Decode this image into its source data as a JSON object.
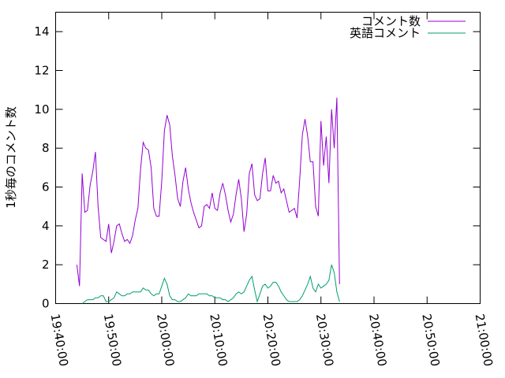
{
  "chart_data": {
    "type": "line",
    "ylabel": "1秒毎のコメント数",
    "xlabel": "",
    "title": "",
    "ylim": [
      0,
      15
    ],
    "y_ticks": [
      0,
      2,
      4,
      6,
      8,
      10,
      12,
      14
    ],
    "x_tick_labels": [
      "19:40:00",
      "19:50:00",
      "20:00:00",
      "20:10:00",
      "20:20:00",
      "20:30:00",
      "20:40:00",
      "20:50:00",
      "21:00:00"
    ],
    "legend_position": "top-right",
    "grid": false,
    "series": [
      {
        "name": "コメント数",
        "color": "#9400d3",
        "points": [
          [
            "19:44:00",
            2.0
          ],
          [
            "19:44:30",
            0.9
          ],
          [
            "19:45:00",
            6.7
          ],
          [
            "19:45:30",
            4.7
          ],
          [
            "19:46:00",
            4.8
          ],
          [
            "19:46:30",
            6.1
          ],
          [
            "19:47:00",
            6.8
          ],
          [
            "19:47:30",
            7.8
          ],
          [
            "19:48:00",
            5.0
          ],
          [
            "19:48:30",
            3.4
          ],
          [
            "19:49:00",
            3.3
          ],
          [
            "19:49:30",
            3.2
          ],
          [
            "19:50:00",
            4.1
          ],
          [
            "19:50:30",
            2.6
          ],
          [
            "19:51:00",
            3.2
          ],
          [
            "19:51:30",
            4.0
          ],
          [
            "19:52:00",
            4.1
          ],
          [
            "19:52:30",
            3.6
          ],
          [
            "19:53:00",
            3.2
          ],
          [
            "19:53:30",
            3.3
          ],
          [
            "19:54:00",
            3.1
          ],
          [
            "19:54:30",
            3.5
          ],
          [
            "19:55:00",
            4.3
          ],
          [
            "19:55:30",
            4.9
          ],
          [
            "19:56:00",
            6.9
          ],
          [
            "19:56:30",
            8.3
          ],
          [
            "19:57:00",
            8.0
          ],
          [
            "19:57:30",
            7.9
          ],
          [
            "19:58:00",
            7.0
          ],
          [
            "19:58:30",
            4.9
          ],
          [
            "19:59:00",
            4.5
          ],
          [
            "19:59:30",
            4.5
          ],
          [
            "20:00:00",
            6.3
          ],
          [
            "20:00:30",
            8.9
          ],
          [
            "20:01:00",
            9.7
          ],
          [
            "20:01:30",
            9.2
          ],
          [
            "20:02:00",
            7.6
          ],
          [
            "20:02:30",
            6.6
          ],
          [
            "20:03:00",
            5.4
          ],
          [
            "20:03:30",
            5.0
          ],
          [
            "20:04:00",
            6.3
          ],
          [
            "20:04:30",
            7.0
          ],
          [
            "20:05:00",
            5.9
          ],
          [
            "20:05:30",
            5.2
          ],
          [
            "20:06:00",
            4.7
          ],
          [
            "20:06:30",
            4.3
          ],
          [
            "20:07:00",
            3.9
          ],
          [
            "20:07:30",
            4.0
          ],
          [
            "20:08:00",
            5.0
          ],
          [
            "20:08:30",
            5.1
          ],
          [
            "20:09:00",
            4.9
          ],
          [
            "20:09:30",
            5.7
          ],
          [
            "20:10:00",
            4.9
          ],
          [
            "20:10:30",
            4.8
          ],
          [
            "20:11:00",
            5.7
          ],
          [
            "20:11:30",
            6.2
          ],
          [
            "20:12:00",
            5.6
          ],
          [
            "20:12:30",
            4.8
          ],
          [
            "20:13:00",
            4.2
          ],
          [
            "20:13:30",
            4.6
          ],
          [
            "20:14:00",
            5.6
          ],
          [
            "20:14:30",
            6.4
          ],
          [
            "20:15:00",
            5.4
          ],
          [
            "20:15:30",
            3.7
          ],
          [
            "20:16:00",
            4.6
          ],
          [
            "20:16:30",
            6.7
          ],
          [
            "20:17:00",
            7.2
          ],
          [
            "20:17:30",
            5.6
          ],
          [
            "20:18:00",
            5.3
          ],
          [
            "20:18:30",
            5.4
          ],
          [
            "20:19:00",
            6.7
          ],
          [
            "20:19:30",
            7.5
          ],
          [
            "20:20:00",
            5.8
          ],
          [
            "20:20:30",
            5.8
          ],
          [
            "20:21:00",
            6.6
          ],
          [
            "20:21:30",
            6.2
          ],
          [
            "20:22:00",
            6.3
          ],
          [
            "20:22:30",
            5.7
          ],
          [
            "20:23:00",
            5.9
          ],
          [
            "20:23:30",
            5.3
          ],
          [
            "20:24:00",
            4.7
          ],
          [
            "20:24:30",
            4.8
          ],
          [
            "20:25:00",
            4.9
          ],
          [
            "20:25:30",
            4.4
          ],
          [
            "20:26:00",
            6.4
          ],
          [
            "20:26:30",
            8.7
          ],
          [
            "20:27:00",
            9.5
          ],
          [
            "20:27:30",
            8.6
          ],
          [
            "20:28:00",
            7.3
          ],
          [
            "20:28:30",
            7.3
          ],
          [
            "20:29:00",
            5.0
          ],
          [
            "20:29:30",
            4.5
          ],
          [
            "20:30:00",
            9.4
          ],
          [
            "20:30:30",
            7.1
          ],
          [
            "20:31:00",
            8.6
          ],
          [
            "20:31:30",
            6.2
          ],
          [
            "20:32:00",
            10.0
          ],
          [
            "20:32:30",
            8.0
          ],
          [
            "20:33:00",
            10.6
          ],
          [
            "20:33:30",
            1.0
          ]
        ]
      },
      {
        "name": "英語コメント",
        "color": "#009e73",
        "points": [
          [
            "19:45:00",
            0.0
          ],
          [
            "19:45:30",
            0.1
          ],
          [
            "19:46:00",
            0.2
          ],
          [
            "19:46:30",
            0.2
          ],
          [
            "19:47:00",
            0.2
          ],
          [
            "19:47:30",
            0.3
          ],
          [
            "19:48:00",
            0.3
          ],
          [
            "19:48:30",
            0.4
          ],
          [
            "19:49:00",
            0.4
          ],
          [
            "19:49:30",
            0.1
          ],
          [
            "19:50:00",
            0.1
          ],
          [
            "19:50:30",
            0.2
          ],
          [
            "19:51:00",
            0.3
          ],
          [
            "19:51:30",
            0.6
          ],
          [
            "19:52:00",
            0.5
          ],
          [
            "19:52:30",
            0.4
          ],
          [
            "19:53:00",
            0.4
          ],
          [
            "19:53:30",
            0.5
          ],
          [
            "19:54:00",
            0.5
          ],
          [
            "19:54:30",
            0.6
          ],
          [
            "19:55:00",
            0.6
          ],
          [
            "19:55:30",
            0.6
          ],
          [
            "19:56:00",
            0.6
          ],
          [
            "19:56:30",
            0.8
          ],
          [
            "19:57:00",
            0.7
          ],
          [
            "19:57:30",
            0.7
          ],
          [
            "19:58:00",
            0.5
          ],
          [
            "19:58:30",
            0.4
          ],
          [
            "19:59:00",
            0.5
          ],
          [
            "19:59:30",
            0.5
          ],
          [
            "20:00:00",
            0.9
          ],
          [
            "20:00:30",
            1.3
          ],
          [
            "20:01:00",
            1.0
          ],
          [
            "20:01:30",
            0.4
          ],
          [
            "20:02:00",
            0.2
          ],
          [
            "20:02:30",
            0.2
          ],
          [
            "20:03:00",
            0.1
          ],
          [
            "20:03:30",
            0.1
          ],
          [
            "20:04:00",
            0.2
          ],
          [
            "20:04:30",
            0.3
          ],
          [
            "20:05:00",
            0.5
          ],
          [
            "20:05:30",
            0.4
          ],
          [
            "20:06:00",
            0.4
          ],
          [
            "20:06:30",
            0.4
          ],
          [
            "20:07:00",
            0.5
          ],
          [
            "20:07:30",
            0.5
          ],
          [
            "20:08:00",
            0.5
          ],
          [
            "20:08:30",
            0.5
          ],
          [
            "20:09:00",
            0.4
          ],
          [
            "20:09:30",
            0.4
          ],
          [
            "20:10:00",
            0.3
          ],
          [
            "20:10:30",
            0.3
          ],
          [
            "20:11:00",
            0.3
          ],
          [
            "20:11:30",
            0.2
          ],
          [
            "20:12:00",
            0.2
          ],
          [
            "20:12:30",
            0.1
          ],
          [
            "20:13:00",
            0.2
          ],
          [
            "20:13:30",
            0.3
          ],
          [
            "20:14:00",
            0.5
          ],
          [
            "20:14:30",
            0.6
          ],
          [
            "20:15:00",
            0.5
          ],
          [
            "20:15:30",
            0.6
          ],
          [
            "20:16:00",
            0.9
          ],
          [
            "20:16:30",
            1.2
          ],
          [
            "20:17:00",
            1.4
          ],
          [
            "20:17:30",
            0.7
          ],
          [
            "20:18:00",
            0.1
          ],
          [
            "20:18:30",
            0.5
          ],
          [
            "20:19:00",
            0.9
          ],
          [
            "20:19:30",
            1.0
          ],
          [
            "20:20:00",
            0.8
          ],
          [
            "20:20:30",
            0.9
          ],
          [
            "20:21:00",
            1.1
          ],
          [
            "20:21:30",
            1.1
          ],
          [
            "20:22:00",
            0.9
          ],
          [
            "20:22:30",
            0.6
          ],
          [
            "20:23:00",
            0.4
          ],
          [
            "20:23:30",
            0.2
          ],
          [
            "20:24:00",
            0.1
          ],
          [
            "20:24:30",
            0.1
          ],
          [
            "20:25:00",
            0.1
          ],
          [
            "20:25:30",
            0.1
          ],
          [
            "20:26:00",
            0.2
          ],
          [
            "20:26:30",
            0.4
          ],
          [
            "20:27:00",
            0.7
          ],
          [
            "20:27:30",
            1.0
          ],
          [
            "20:28:00",
            1.4
          ],
          [
            "20:28:30",
            0.8
          ],
          [
            "20:29:00",
            0.6
          ],
          [
            "20:29:30",
            1.0
          ],
          [
            "20:30:00",
            0.8
          ],
          [
            "20:30:30",
            0.9
          ],
          [
            "20:31:00",
            1.0
          ],
          [
            "20:31:30",
            1.2
          ],
          [
            "20:32:00",
            2.0
          ],
          [
            "20:32:30",
            1.6
          ],
          [
            "20:33:00",
            0.6
          ],
          [
            "20:33:30",
            0.1
          ]
        ]
      }
    ]
  }
}
